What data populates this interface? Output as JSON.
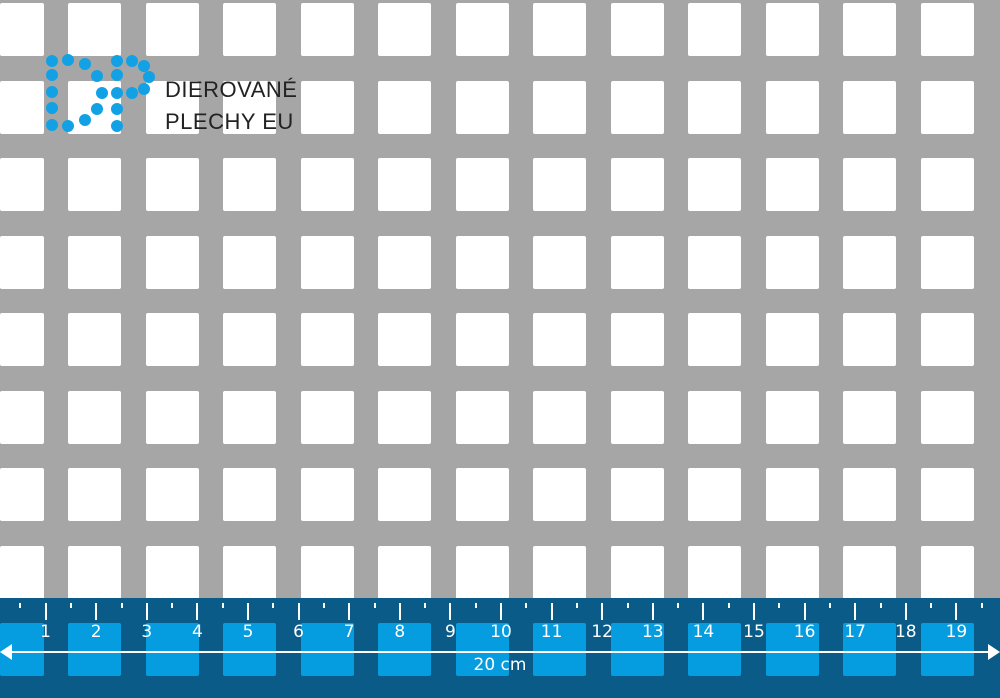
{
  "brand": {
    "name_line1": "DIEROVANÉ",
    "name_line2": "PLECHY EU",
    "logo_letters": "DP",
    "logo_color": "#12a1e4"
  },
  "ruler": {
    "labels": [
      "1",
      "2",
      "3",
      "4",
      "5",
      "6",
      "7",
      "8",
      "9",
      "10",
      "11",
      "12",
      "13",
      "14",
      "15",
      "16",
      "17",
      "18",
      "19"
    ],
    "length_label": "20 cm",
    "band_color": "#0b5b88"
  },
  "sheet": {
    "material_color": "#a6a6a6",
    "hole_shape": "square"
  }
}
